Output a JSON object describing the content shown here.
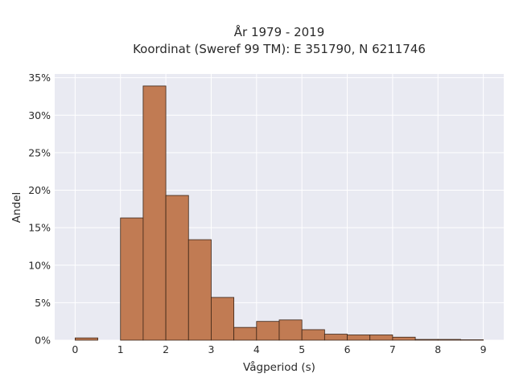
{
  "chart_data": {
    "type": "bar",
    "title_lines": [
      "År 1979 - 2019",
      "Koordinat (Sweref 99 TM): E 351790, N 6211746"
    ],
    "xlabel": "Vågperiod (s)",
    "ylabel": "Andel",
    "xlim": [
      -0.45,
      9.45
    ],
    "ylim": [
      0,
      35.5
    ],
    "x_ticks": [
      0,
      1,
      2,
      3,
      4,
      5,
      6,
      7,
      8,
      9
    ],
    "x_tick_labels": [
      "0",
      "1",
      "2",
      "3",
      "4",
      "5",
      "6",
      "7",
      "8",
      "9"
    ],
    "y_ticks": [
      0,
      5,
      10,
      15,
      20,
      25,
      30,
      35
    ],
    "y_tick_labels": [
      "0%",
      "5%",
      "10%",
      "15%",
      "20%",
      "25%",
      "30%",
      "35%"
    ],
    "bin_width": 0.5,
    "bin_starts": [
      0,
      0.5,
      1.0,
      1.5,
      2.0,
      2.5,
      3.0,
      3.5,
      4.0,
      4.5,
      5.0,
      5.5,
      6.0,
      6.5,
      7.0,
      7.5,
      8.0,
      8.5
    ],
    "values": [
      0.3,
      0,
      16.3,
      33.9,
      19.3,
      13.4,
      5.7,
      1.7,
      2.5,
      2.7,
      1.4,
      0.8,
      0.7,
      0.7,
      0.4,
      0.1,
      0.1,
      0.05
    ],
    "bar_color": "#c17b53",
    "bar_edge_color": "#3b2416",
    "plot_background": "#e9eaf2",
    "grid": true,
    "grid_color": "#ffffff"
  }
}
